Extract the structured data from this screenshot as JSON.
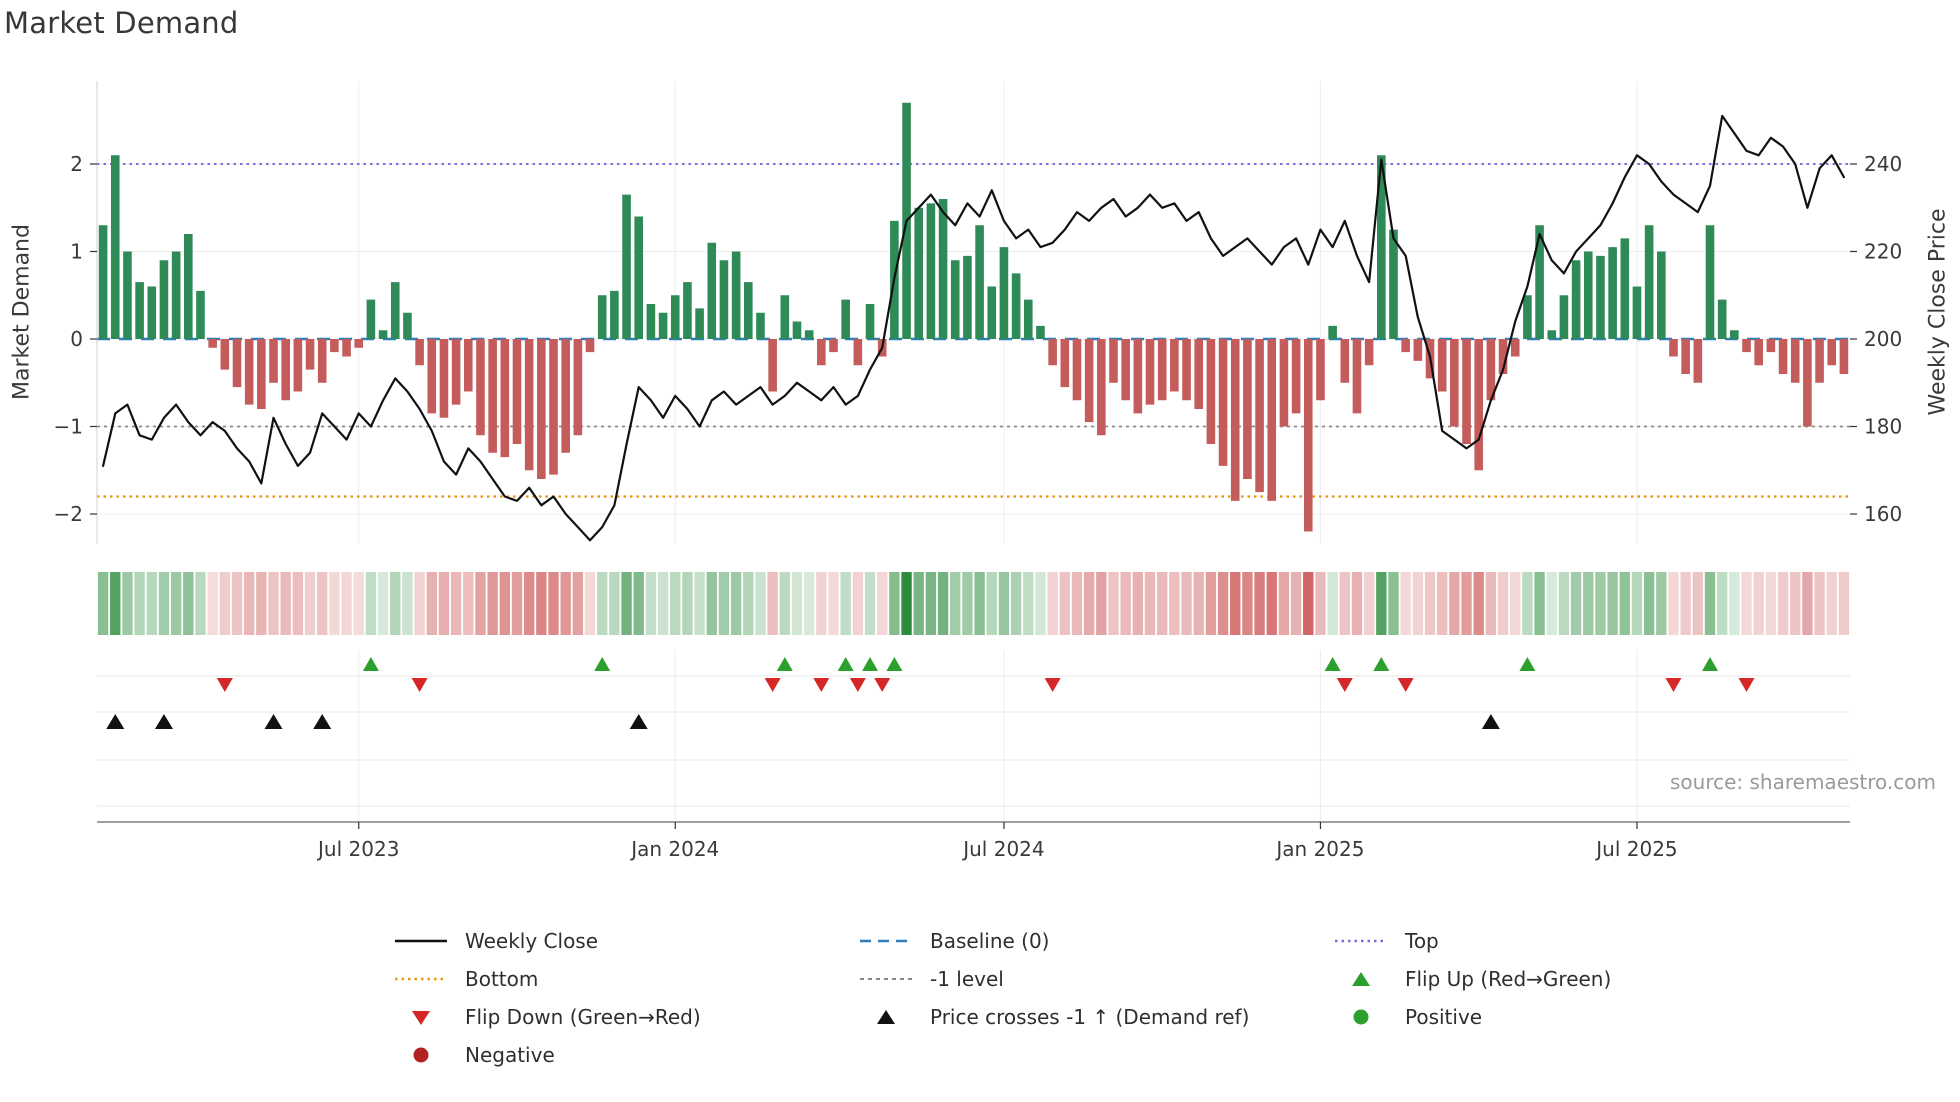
{
  "title": "Market Demand",
  "left_axis_label": "Market Demand",
  "right_axis_label": "Weekly Close Price",
  "source": "source: sharemaestro.com",
  "colors": {
    "bar_positive": "#2e8b57",
    "bar_negative": "#c45c5c",
    "price_line": "#111111",
    "baseline": "#2e7ebc",
    "top_line": "#7471de",
    "bottom_line": "#e8940d",
    "minus1_line": "#8a8a8a",
    "flip_up": "#2ca02c",
    "flip_down": "#d62728",
    "price_cross": "#111111",
    "positive_dot": "#2ca02c",
    "negative_dot": "#b22222",
    "heat_green": "44,140,60",
    "heat_red": "200,70,70"
  },
  "chart_data": {
    "type": "bar+line",
    "title": "Market Demand",
    "ylabel_left": "Market Demand",
    "ylabel_right": "Weekly Close Price",
    "x_tick_labels": [
      "Jul 2023",
      "Jan 2024",
      "Jul 2024",
      "Jan 2025",
      "Jul 2025"
    ],
    "x_tick_indices": [
      21,
      47,
      74,
      100,
      126
    ],
    "left_tick_labels": [
      "2",
      "1",
      "0",
      "−1",
      "−2"
    ],
    "left_tick_values": [
      2,
      1,
      0,
      -1,
      -2
    ],
    "right_tick_labels": [
      "240",
      "220",
      "200",
      "180",
      "160"
    ],
    "right_tick_values": [
      240,
      220,
      200,
      180,
      160
    ],
    "left_ylim": [
      -2.35,
      2.95
    ],
    "right_ylim": [
      153,
      259
    ],
    "grid": true,
    "reference_lines": {
      "baseline": 0,
      "top": 2,
      "bottom": -1.8,
      "minus1": -1
    },
    "heatmap_from": "demand",
    "series": [
      {
        "name": "Market Demand",
        "type": "bar",
        "axis": "left",
        "values": [
          1.3,
          2.1,
          1.0,
          0.65,
          0.6,
          0.9,
          1.0,
          1.2,
          0.55,
          -0.1,
          -0.35,
          -0.55,
          -0.75,
          -0.8,
          -0.5,
          -0.7,
          -0.6,
          -0.35,
          -0.5,
          -0.15,
          -0.2,
          -0.1,
          0.45,
          0.1,
          0.65,
          0.3,
          -0.3,
          -0.85,
          -0.9,
          -0.75,
          -0.6,
          -1.1,
          -1.3,
          -1.35,
          -1.2,
          -1.5,
          -1.6,
          -1.55,
          -1.3,
          -1.1,
          -0.15,
          0.5,
          0.55,
          1.65,
          1.4,
          0.4,
          0.3,
          0.5,
          0.65,
          0.35,
          1.1,
          0.9,
          1.0,
          0.65,
          0.3,
          -0.6,
          0.5,
          0.2,
          0.1,
          -0.3,
          -0.15,
          0.45,
          -0.3,
          0.4,
          -0.2,
          1.35,
          2.7,
          1.5,
          1.55,
          1.6,
          0.9,
          0.95,
          1.3,
          0.6,
          1.05,
          0.75,
          0.45,
          0.15,
          -0.3,
          -0.55,
          -0.7,
          -0.95,
          -1.1,
          -0.5,
          -0.7,
          -0.85,
          -0.75,
          -0.7,
          -0.6,
          -0.7,
          -0.8,
          -1.2,
          -1.45,
          -1.85,
          -1.6,
          -1.75,
          -1.85,
          -1.0,
          -0.85,
          -2.2,
          -0.7,
          0.15,
          -0.5,
          -0.85,
          -0.3,
          2.1,
          1.25,
          -0.15,
          -0.25,
          -0.45,
          -0.6,
          -1.0,
          -1.2,
          -1.5,
          -0.7,
          -0.4,
          -0.2,
          0.5,
          1.3,
          0.1,
          0.5,
          0.9,
          1.0,
          0.95,
          1.05,
          1.15,
          0.6,
          1.3,
          1.0,
          -0.2,
          -0.4,
          -0.5,
          1.3,
          0.45,
          0.1,
          -0.15,
          -0.3,
          -0.15,
          -0.4,
          -0.5,
          -1.0,
          -0.5,
          -0.3,
          -0.4
        ]
      },
      {
        "name": "Weekly Close",
        "type": "line",
        "axis": "right",
        "values": [
          171,
          183,
          185,
          178,
          177,
          182,
          185,
          181,
          178,
          181,
          179,
          175,
          172,
          167,
          182,
          176,
          171,
          174,
          183,
          180,
          177,
          183,
          180,
          186,
          191,
          188,
          184,
          179,
          172,
          169,
          175,
          172,
          168,
          164,
          163,
          166,
          162,
          164,
          160,
          157,
          154,
          157,
          162,
          176,
          189,
          186,
          182,
          187,
          184,
          180,
          186,
          188,
          185,
          187,
          189,
          185,
          187,
          190,
          188,
          186,
          189,
          185,
          187,
          193,
          198,
          214,
          227,
          230,
          233,
          229,
          226,
          231,
          228,
          234,
          227,
          223,
          225,
          221,
          222,
          225,
          229,
          227,
          230,
          232,
          228,
          230,
          233,
          230,
          231,
          227,
          229,
          223,
          219,
          221,
          223,
          220,
          217,
          221,
          223,
          217,
          225,
          221,
          227,
          219,
          213,
          241,
          223,
          219,
          205,
          196,
          179,
          177,
          175,
          177,
          186,
          193,
          204,
          212,
          224,
          218,
          215,
          220,
          223,
          226,
          231,
          237,
          242,
          240,
          236,
          233,
          231,
          229,
          235,
          251,
          247,
          243,
          242,
          246,
          244,
          240,
          230,
          239,
          242,
          237
        ]
      }
    ],
    "markers": {
      "flip_up_indices": [
        22,
        41,
        56,
        61,
        63,
        65,
        101,
        105,
        117,
        132
      ],
      "flip_down_indices": [
        10,
        26,
        55,
        59,
        62,
        64,
        78,
        102,
        107,
        129,
        135
      ],
      "price_cross_indices": [
        1,
        5,
        14,
        18,
        44,
        114
      ]
    }
  },
  "legend": {
    "columns": [
      {
        "items": [
          {
            "label": "Weekly Close",
            "symbol": "line-solid-black"
          },
          {
            "label": "Bottom",
            "symbol": "line-dotted-orange"
          },
          {
            "label": "Flip Down (Green→Red)",
            "symbol": "triangle-down-red"
          },
          {
            "label": "Negative",
            "symbol": "circle-darkred"
          }
        ]
      },
      {
        "items": [
          {
            "label": "Baseline (0)",
            "symbol": "line-dashed-blue"
          },
          {
            "label": "-1 level",
            "symbol": "line-dashed-gray"
          },
          {
            "label": "Price crosses -1 ↑ (Demand ref)",
            "symbol": "triangle-up-black"
          }
        ]
      },
      {
        "items": [
          {
            "label": "Top",
            "symbol": "line-dotted-purple"
          },
          {
            "label": "Flip Up (Red→Green)",
            "symbol": "triangle-up-green"
          },
          {
            "label": "Positive",
            "symbol": "circle-green"
          }
        ]
      }
    ]
  }
}
